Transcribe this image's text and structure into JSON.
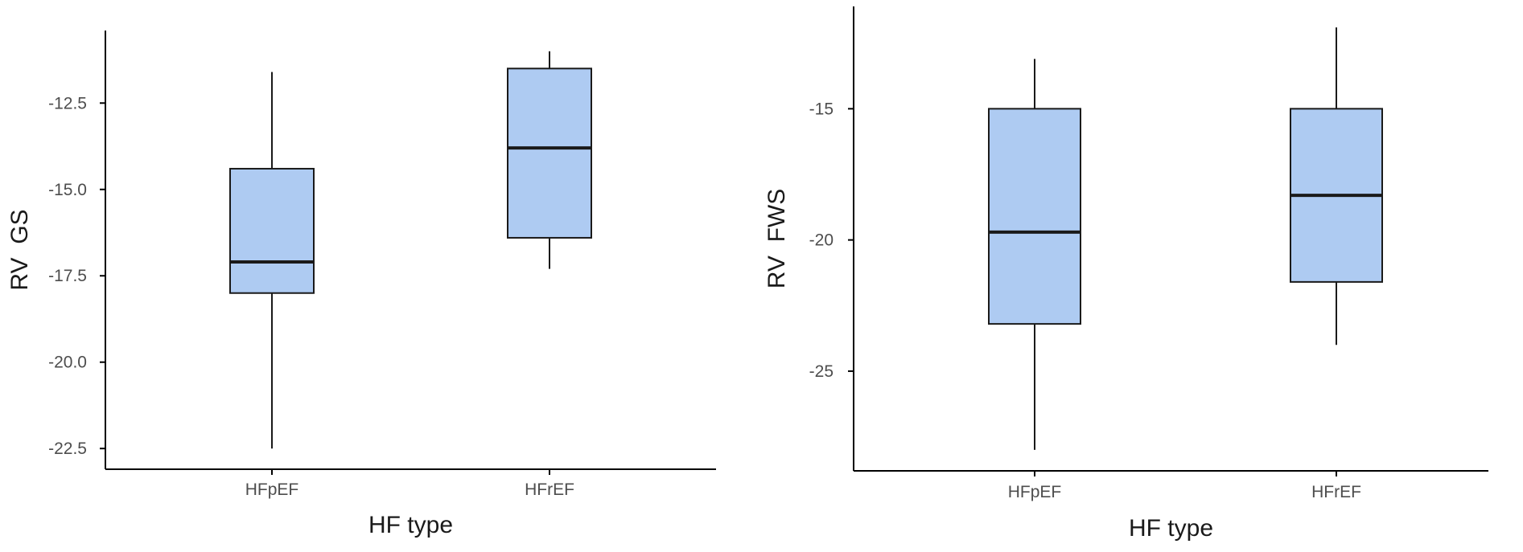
{
  "chart_data": [
    {
      "type": "box",
      "xlabel": "HF type",
      "ylabel": "RV  GS",
      "categories": [
        "HFpEF",
        "HFrEF"
      ],
      "ylim": [
        -23.1,
        -10.4
      ],
      "yticks": [
        -12.5,
        -15.0,
        -17.5,
        -20.0,
        -22.5
      ],
      "ytick_labels": [
        "-12.5",
        "-15.0",
        "-17.5",
        "-20.0",
        "-22.5"
      ],
      "box_color": "#aecbf2",
      "boxes": [
        {
          "category": "HFpEF",
          "min": -22.5,
          "q1": -18.0,
          "median": -17.1,
          "q3": -14.4,
          "max": -11.6
        },
        {
          "category": "HFrEF",
          "min": -17.3,
          "q1": -16.4,
          "median": -13.8,
          "q3": -11.5,
          "max": -11.0
        }
      ]
    },
    {
      "type": "box",
      "xlabel": "HF type",
      "ylabel": "RV  FWS",
      "categories": [
        "HFpEF",
        "HFrEF"
      ],
      "ylim": [
        -28.8,
        -11.1
      ],
      "yticks": [
        -15,
        -20,
        -25
      ],
      "ytick_labels": [
        "-15",
        "-20",
        "-25"
      ],
      "box_color": "#aecbf2",
      "boxes": [
        {
          "category": "HFpEF",
          "min": -28.0,
          "q1": -23.2,
          "median": -19.7,
          "q3": -15.0,
          "max": -13.1
        },
        {
          "category": "HFrEF",
          "min": -24.0,
          "q1": -21.6,
          "median": -18.3,
          "q3": -15.0,
          "max": -11.9
        }
      ]
    }
  ]
}
